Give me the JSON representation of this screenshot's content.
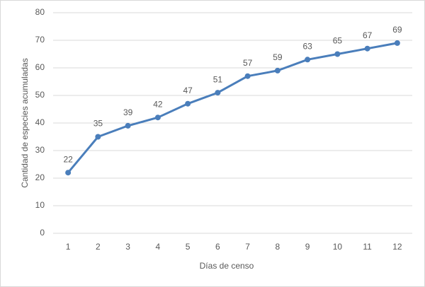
{
  "chart_data": {
    "type": "line",
    "x_label": "Días de censo",
    "y_label": "Cantidad de especies acumuladas",
    "categories": [
      "1",
      "2",
      "3",
      "4",
      "5",
      "6",
      "7",
      "8",
      "9",
      "10",
      "11",
      "12"
    ],
    "values": [
      22,
      35,
      39,
      42,
      47,
      51,
      57,
      59,
      63,
      65,
      67,
      69
    ],
    "color": "#4a7ebb",
    "ylim": [
      0,
      80
    ],
    "yticks": [
      0,
      10,
      20,
      30,
      40,
      50,
      60,
      70,
      80
    ],
    "grid": true
  }
}
